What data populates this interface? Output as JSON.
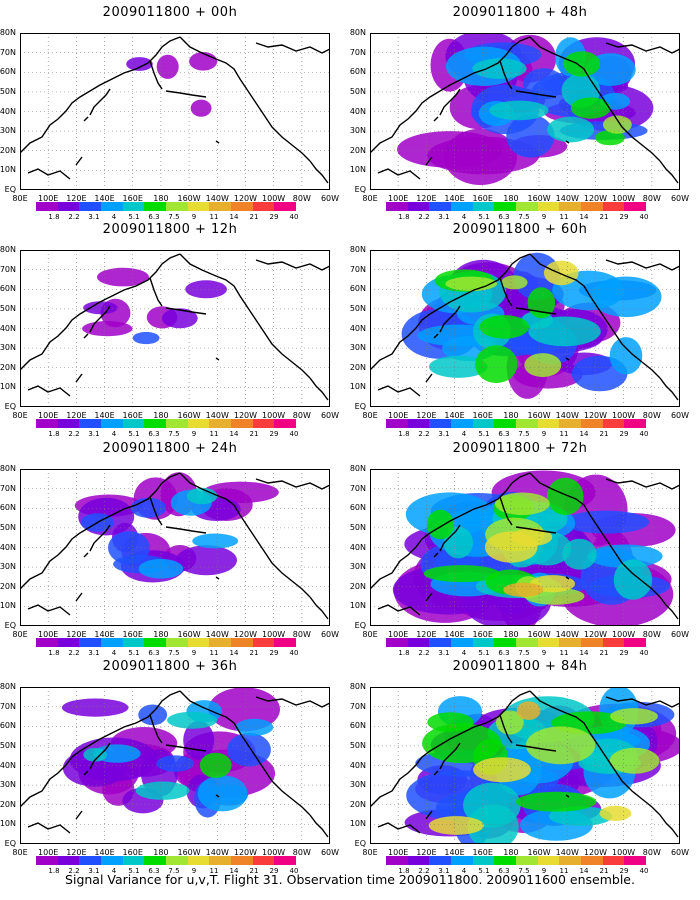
{
  "panels": [
    {
      "title": "2009011800 + 00h",
      "intensity": 0.25
    },
    {
      "title": "2009011800 + 12h",
      "intensity": 0.38
    },
    {
      "title": "2009011800 + 24h",
      "intensity": 0.55
    },
    {
      "title": "2009011800 + 36h",
      "intensity": 0.7
    },
    {
      "title": "2009011800 + 48h",
      "intensity": 0.8
    },
    {
      "title": "2009011800 + 60h",
      "intensity": 0.88
    },
    {
      "title": "2009011800 + 72h",
      "intensity": 0.95
    },
    {
      "title": "2009011800 + 84h",
      "intensity": 1.0
    }
  ],
  "lat_labels": [
    "80N",
    "70N",
    "60N",
    "50N",
    "40N",
    "30N",
    "20N",
    "10N",
    "EQ"
  ],
  "lon_labels": [
    "80E",
    "100E",
    "120E",
    "140E",
    "160E",
    "180",
    "160W",
    "140W",
    "120W",
    "100W",
    "80W",
    "60W"
  ],
  "colorbar": {
    "colors": [
      "#a000c8",
      "#7800dc",
      "#2050ff",
      "#00a0ff",
      "#00c8c8",
      "#00dc00",
      "#a0e632",
      "#e6dc32",
      "#e6af2d",
      "#f08228",
      "#fa3c3c",
      "#f00082"
    ],
    "levels": [
      "1.8",
      "2.2",
      "3.1",
      "4",
      "5.1",
      "6.3",
      "7.5",
      "9",
      "11",
      "14",
      "21",
      "29",
      "40"
    ]
  },
  "footer": "Signal Variance for u,v,T. Flight 31. Observation time 2009011800. 2009011600 ensemble."
}
